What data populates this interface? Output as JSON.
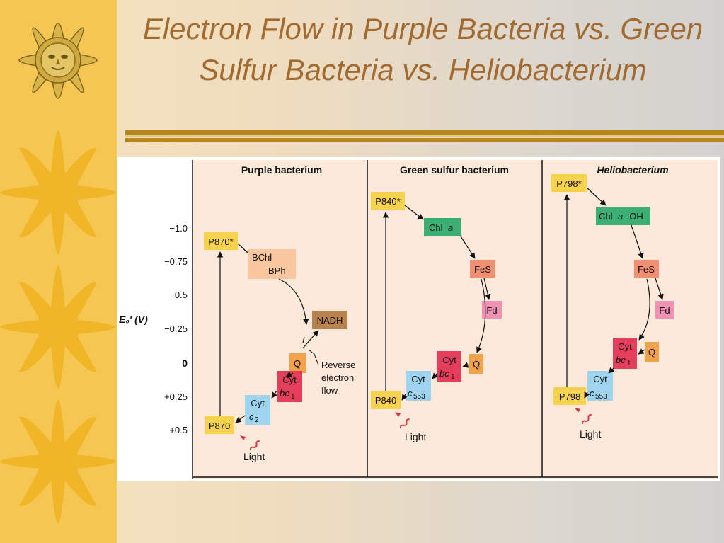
{
  "slide": {
    "title": "Electron Flow in Purple Bacteria vs. Green Sulfur Bacteria vs. Heliobacterium"
  },
  "colors": {
    "sidebar": "#f6c653",
    "sun_ray": "#f1b628",
    "title": "#a26a2f",
    "rule": "#b7861c",
    "panel_bg": "#fde9da",
    "p_box": "#f6d24f",
    "bchl_box": "#f9c79d",
    "nadh_box": "#b8834e",
    "q_box": "#f2a24b",
    "cytbc1_box": "#e53d5c",
    "cytc_box": "#9fd4ef",
    "chla_box": "#3caf72",
    "fes_box": "#f18f73",
    "fd_box": "#ee93b4",
    "light_arrow": "#d43943"
  },
  "icons": [
    "sun-medallion-icon",
    "sun-icon"
  ],
  "figure": {
    "axis_label": "E₀′ (V)",
    "ticks": [
      "−1.0",
      "−0.75",
      "−0.5",
      "−0.25",
      "0",
      "+0.25",
      "+0.5"
    ],
    "panels": [
      {
        "title": "Purple bacterium",
        "p_top": "P870*",
        "bchl": "BChl",
        "bph": "BPh",
        "nadh": "NADH",
        "q": "Q",
        "cyt_bc1_cyt": "Cyt",
        "cyt_bc1_bc": "bc",
        "cyt_bc1_sub": "1",
        "cyt_c_cyt": "Cyt",
        "cyt_c_c": "c",
        "cyt_c_sub": "2",
        "p_bottom": "P870",
        "reverse_1": "Reverse",
        "reverse_2": "electron",
        "reverse_3": "flow",
        "light": "Light"
      },
      {
        "title": "Green sulfur bacterium",
        "p_top": "P840*",
        "chl": "Chl",
        "chl_a": "a",
        "fes": "FeS",
        "fd": "Fd",
        "cyt_bc1_cyt": "Cyt",
        "cyt_bc1_bc": "bc",
        "cyt_bc1_sub": "1",
        "q": "Q",
        "cyt_c_cyt": "Cyt",
        "cyt_c_c": "c",
        "cyt_c_sub": "553",
        "p_bottom": "P840",
        "light": "Light"
      },
      {
        "title": "Heliobacterium",
        "p_top": "P798*",
        "chl": "Chl",
        "chl_a": "a",
        "chl_suffix": "–OH",
        "fes": "FeS",
        "fd": "Fd",
        "cyt_bc1_cyt": "Cyt",
        "cyt_bc1_bc": "bc",
        "cyt_bc1_sub": "1",
        "q": "Q",
        "cyt_c_cyt": "Cyt",
        "cyt_c_c": "c",
        "cyt_c_sub": "553",
        "p_bottom": "P798",
        "light": "Light"
      }
    ]
  }
}
